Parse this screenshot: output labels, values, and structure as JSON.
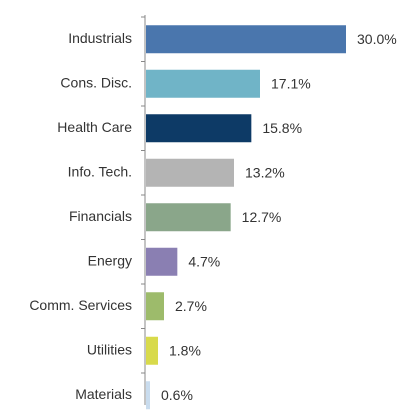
{
  "chart_data": {
    "type": "bar",
    "orientation": "horizontal",
    "categories": [
      "Industrials",
      "Cons. Disc.",
      "Health Care",
      "Info. Tech.",
      "Financials",
      "Energy",
      "Comm. Services",
      "Utilities",
      "Materials"
    ],
    "values": [
      30.0,
      17.1,
      15.8,
      13.2,
      12.7,
      4.7,
      2.7,
      1.8,
      0.6
    ],
    "value_labels": [
      "30.0%",
      "17.1%",
      "15.8%",
      "13.2%",
      "12.7%",
      "4.7%",
      "2.7%",
      "1.8%",
      "0.6%"
    ],
    "colors": [
      "#4a76ad",
      "#70b4c7",
      "#0d3a66",
      "#b4b4b4",
      "#8aa68a",
      "#8a7fb2",
      "#9dbb6b",
      "#d8da4b",
      "#c9dcee"
    ]
  }
}
